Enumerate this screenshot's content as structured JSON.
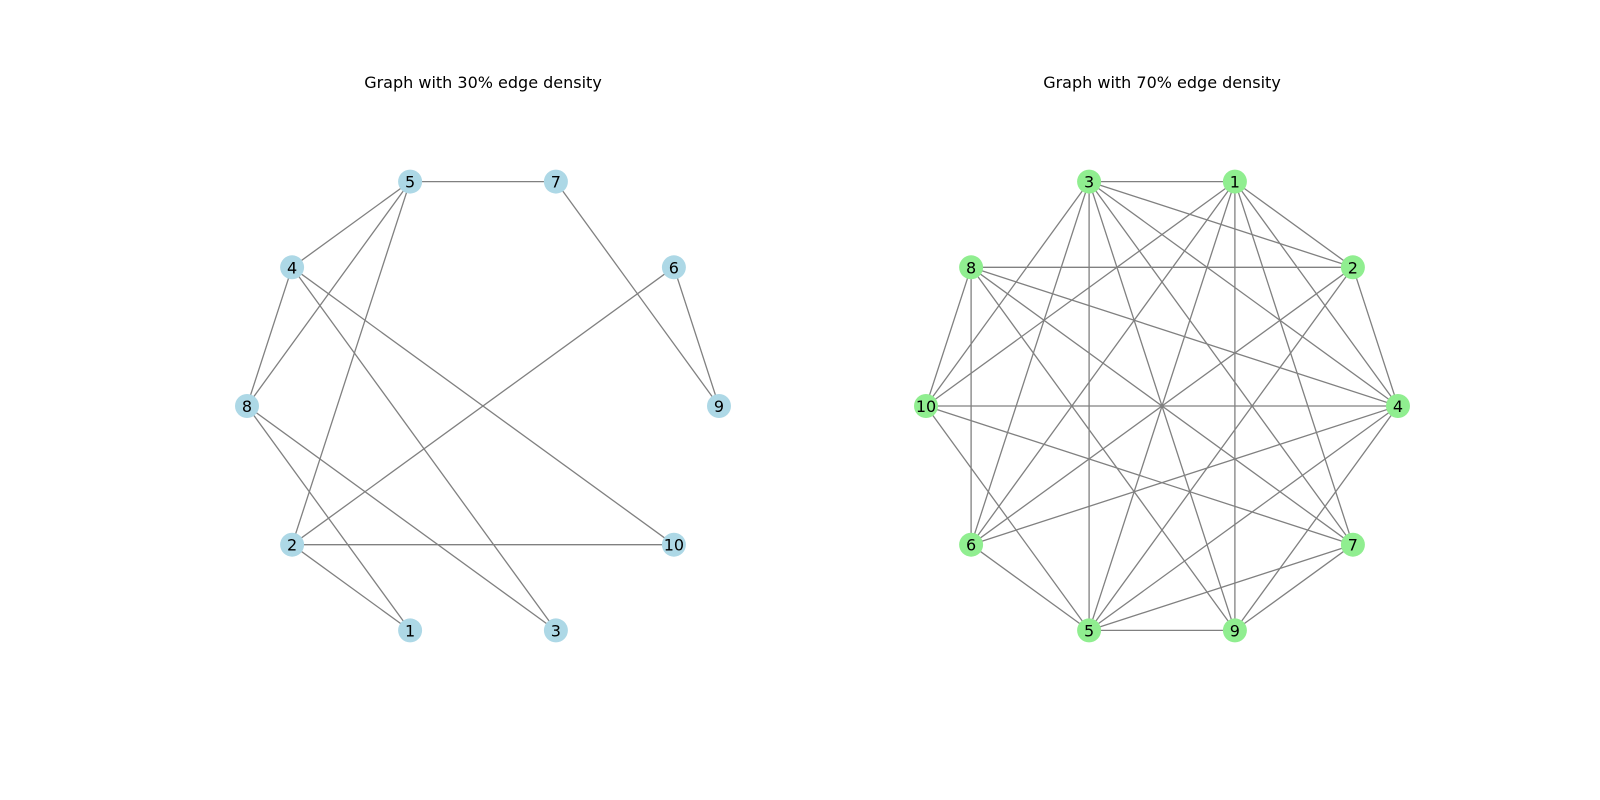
{
  "figure": {
    "edge_color": "#808080",
    "panels": [
      {
        "title": "Graph with 30% edge density",
        "node_color": "#add8e6",
        "layout": "circular",
        "nodes": [
          {
            "label": "5"
          },
          {
            "label": "7"
          },
          {
            "label": "6"
          },
          {
            "label": "9"
          },
          {
            "label": "10"
          },
          {
            "label": "3"
          },
          {
            "label": "1"
          },
          {
            "label": "2"
          },
          {
            "label": "8"
          },
          {
            "label": "4"
          }
        ],
        "edges": [
          [
            "5",
            "7"
          ],
          [
            "5",
            "4"
          ],
          [
            "5",
            "8"
          ],
          [
            "5",
            "2"
          ],
          [
            "7",
            "9"
          ],
          [
            "6",
            "9"
          ],
          [
            "6",
            "2"
          ],
          [
            "4",
            "8"
          ],
          [
            "4",
            "3"
          ],
          [
            "4",
            "10"
          ],
          [
            "8",
            "1"
          ],
          [
            "8",
            "3"
          ],
          [
            "2",
            "10"
          ],
          [
            "2",
            "1"
          ]
        ]
      },
      {
        "title": "Graph with 70% edge density",
        "node_color": "#90ee90",
        "layout": "circular",
        "nodes": [
          {
            "label": "3"
          },
          {
            "label": "1"
          },
          {
            "label": "2"
          },
          {
            "label": "4"
          },
          {
            "label": "7"
          },
          {
            "label": "9"
          },
          {
            "label": "5"
          },
          {
            "label": "6"
          },
          {
            "label": "10"
          },
          {
            "label": "8"
          }
        ],
        "edges": [
          [
            "3",
            "1"
          ],
          [
            "3",
            "2"
          ],
          [
            "3",
            "4"
          ],
          [
            "3",
            "7"
          ],
          [
            "3",
            "9"
          ],
          [
            "3",
            "5"
          ],
          [
            "3",
            "6"
          ],
          [
            "3",
            "10"
          ],
          [
            "1",
            "2"
          ],
          [
            "1",
            "4"
          ],
          [
            "1",
            "7"
          ],
          [
            "1",
            "9"
          ],
          [
            "1",
            "5"
          ],
          [
            "1",
            "6"
          ],
          [
            "1",
            "10"
          ],
          [
            "2",
            "8"
          ],
          [
            "2",
            "4"
          ],
          [
            "2",
            "5"
          ],
          [
            "2",
            "6"
          ],
          [
            "4",
            "8"
          ],
          [
            "4",
            "10"
          ],
          [
            "4",
            "6"
          ],
          [
            "4",
            "5"
          ],
          [
            "4",
            "9"
          ],
          [
            "7",
            "8"
          ],
          [
            "7",
            "10"
          ],
          [
            "7",
            "5"
          ],
          [
            "7",
            "9"
          ],
          [
            "9",
            "5"
          ],
          [
            "9",
            "8"
          ],
          [
            "5",
            "6"
          ],
          [
            "5",
            "10"
          ],
          [
            "6",
            "8"
          ],
          [
            "10",
            "8"
          ]
        ]
      }
    ]
  }
}
